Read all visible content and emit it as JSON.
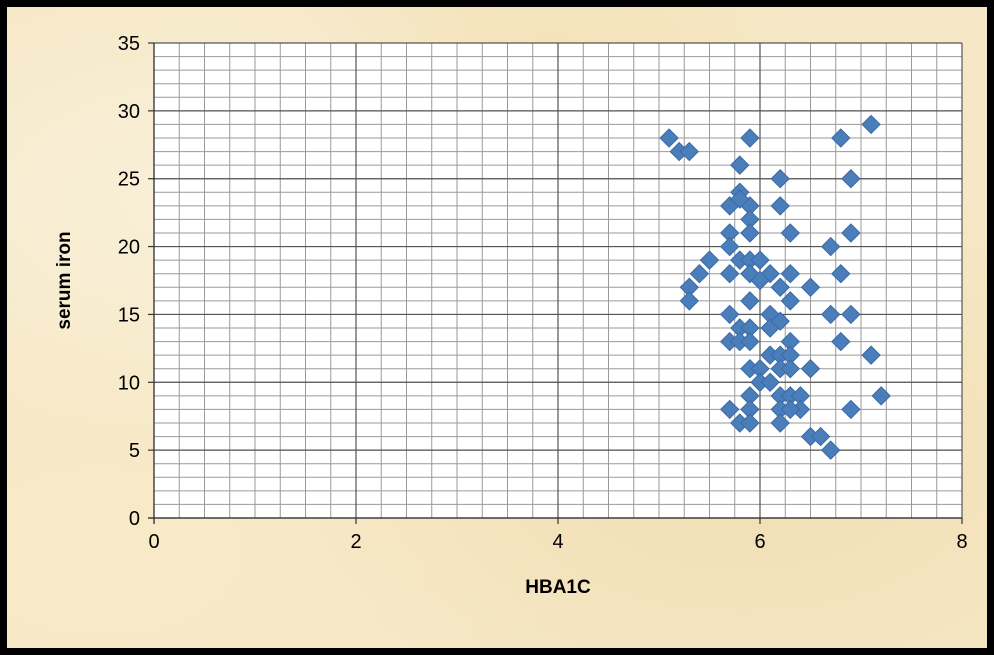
{
  "chart_data": {
    "type": "scatter",
    "title": "",
    "xlabel": "HBA1C",
    "ylabel": "serum iron",
    "xlim": [
      0,
      8
    ],
    "ylim": [
      0,
      35
    ],
    "x_ticks": [
      "0",
      "2",
      "4",
      "6",
      "8"
    ],
    "y_ticks": [
      "0",
      "5",
      "10",
      "15",
      "20",
      "25",
      "30",
      "35"
    ],
    "grid": true,
    "legend": "none",
    "marker": "diamond",
    "series": [
      {
        "color": "#4a7ebb",
        "points": [
          [
            5.1,
            28
          ],
          [
            5.2,
            27
          ],
          [
            5.3,
            27
          ],
          [
            5.9,
            28
          ],
          [
            6.8,
            28
          ],
          [
            7.1,
            29
          ],
          [
            5.8,
            26
          ],
          [
            6.2,
            25
          ],
          [
            6.9,
            25
          ],
          [
            5.8,
            24
          ],
          [
            5.7,
            23
          ],
          [
            5.9,
            23
          ],
          [
            6.2,
            23
          ],
          [
            5.8,
            23.5
          ],
          [
            5.9,
            22
          ],
          [
            5.7,
            21
          ],
          [
            5.9,
            21
          ],
          [
            6.3,
            21
          ],
          [
            6.9,
            21
          ],
          [
            5.7,
            20
          ],
          [
            6.7,
            20
          ],
          [
            5.5,
            19
          ],
          [
            5.8,
            19
          ],
          [
            5.9,
            19
          ],
          [
            6.0,
            19
          ],
          [
            5.4,
            18
          ],
          [
            5.7,
            18
          ],
          [
            5.9,
            18
          ],
          [
            6.1,
            18
          ],
          [
            6.3,
            18
          ],
          [
            6.8,
            18
          ],
          [
            5.3,
            17
          ],
          [
            6.0,
            17.5
          ],
          [
            6.2,
            17
          ],
          [
            6.5,
            17
          ],
          [
            5.9,
            16
          ],
          [
            6.3,
            16
          ],
          [
            5.3,
            16
          ],
          [
            5.7,
            15
          ],
          [
            6.1,
            15
          ],
          [
            6.7,
            15
          ],
          [
            6.9,
            15
          ],
          [
            5.8,
            14
          ],
          [
            5.9,
            14
          ],
          [
            6.1,
            14
          ],
          [
            6.2,
            14.5
          ],
          [
            5.7,
            13
          ],
          [
            5.8,
            13
          ],
          [
            5.9,
            13
          ],
          [
            6.3,
            13
          ],
          [
            6.8,
            13
          ],
          [
            6.1,
            12
          ],
          [
            6.2,
            12
          ],
          [
            6.3,
            12
          ],
          [
            7.1,
            12
          ],
          [
            5.9,
            11
          ],
          [
            6.0,
            11
          ],
          [
            6.2,
            11
          ],
          [
            6.3,
            11
          ],
          [
            6.5,
            11
          ],
          [
            6.0,
            10
          ],
          [
            6.1,
            10
          ],
          [
            5.9,
            9
          ],
          [
            6.2,
            9
          ],
          [
            6.3,
            9
          ],
          [
            6.4,
            9
          ],
          [
            7.2,
            9
          ],
          [
            5.7,
            8
          ],
          [
            5.9,
            8
          ],
          [
            6.2,
            8
          ],
          [
            6.4,
            8
          ],
          [
            6.9,
            8
          ],
          [
            5.8,
            7
          ],
          [
            5.9,
            7
          ],
          [
            6.2,
            7
          ],
          [
            6.3,
            8
          ],
          [
            6.5,
            6
          ],
          [
            6.6,
            6
          ],
          [
            6.7,
            5
          ]
        ]
      }
    ]
  }
}
